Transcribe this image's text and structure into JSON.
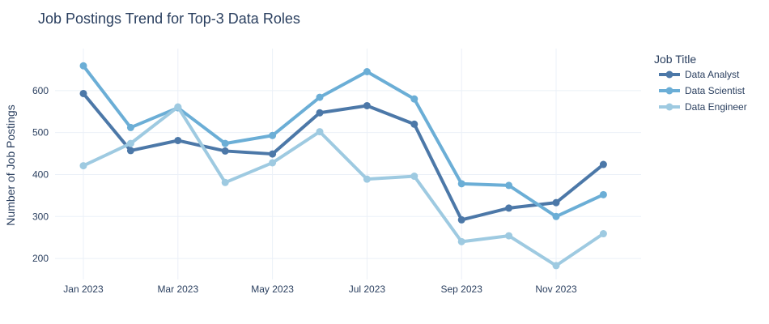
{
  "chart_data": {
    "type": "line",
    "title": "Job Postings Trend for Top-3 Data Roles",
    "xlabel": "",
    "ylabel": "Number of Job Postings",
    "x": [
      "2023-01",
      "2023-02",
      "2023-03",
      "2023-04",
      "2023-05",
      "2023-06",
      "2023-07",
      "2023-08",
      "2023-09",
      "2023-10",
      "2023-11",
      "2023-12"
    ],
    "xticks": [
      {
        "x": "2023-01",
        "label": "Jan 2023"
      },
      {
        "x": "2023-03",
        "label": "Mar 2023"
      },
      {
        "x": "2023-05",
        "label": "May 2023"
      },
      {
        "x": "2023-07",
        "label": "Jul 2023"
      },
      {
        "x": "2023-09",
        "label": "Sep 2023"
      },
      {
        "x": "2023-11",
        "label": "Nov 2023"
      }
    ],
    "yticks": [
      200,
      300,
      400,
      500,
      600
    ],
    "ylim": [
      150,
      700
    ],
    "grid": true,
    "legend": {
      "title": "Job Title",
      "placement": "top-right, outside plot"
    },
    "series": [
      {
        "name": "Data Analyst",
        "color": "#4c78a8",
        "values": [
          593,
          457,
          481,
          456,
          449,
          547,
          564,
          520,
          292,
          320,
          333,
          424
        ]
      },
      {
        "name": "Data Scientist",
        "color": "#6baed6",
        "values": [
          659,
          512,
          559,
          474,
          493,
          584,
          645,
          580,
          378,
          374,
          300,
          352
        ]
      },
      {
        "name": "Data Engineer",
        "color": "#9ecae1",
        "values": [
          421,
          474,
          561,
          381,
          428,
          502,
          389,
          396,
          240,
          254,
          183,
          259
        ]
      }
    ]
  }
}
